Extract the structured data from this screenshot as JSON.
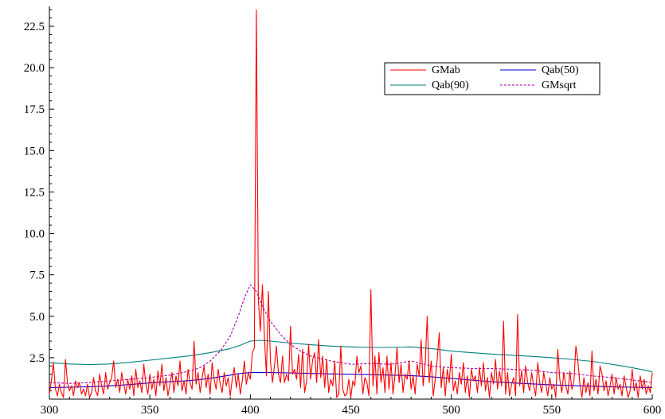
{
  "chart_data": {
    "type": "line",
    "title": "",
    "xlabel": "",
    "ylabel": "",
    "xlim": [
      300,
      600
    ],
    "ylim": [
      0,
      23.7
    ],
    "x_ticks": [
      300,
      350,
      400,
      450,
      500,
      550,
      600
    ],
    "x_tick_labels": [
      "300",
      "350",
      "400",
      "450",
      "500",
      "550",
      "600"
    ],
    "y_ticks": [
      2.5,
      5.0,
      7.5,
      10.0,
      12.5,
      15.0,
      17.5,
      20.0,
      22.5
    ],
    "y_tick_labels": [
      "2.5",
      "5.0",
      "7.5",
      "10.0",
      "12.5",
      "15.0",
      "17.5",
      "20.0",
      "22.5"
    ],
    "grid": false,
    "legend_position": "top-right",
    "legend_columns": 2,
    "series": [
      {
        "name": "GMab",
        "color": "#ff0000",
        "dash": "solid",
        "x": [
          300,
          301,
          302,
          303,
          304,
          305,
          306,
          307,
          308,
          309,
          310,
          311,
          312,
          313,
          314,
          315,
          316,
          317,
          318,
          319,
          320,
          321,
          322,
          323,
          324,
          325,
          326,
          327,
          328,
          329,
          330,
          331,
          332,
          333,
          334,
          335,
          336,
          337,
          338,
          339,
          340,
          341,
          342,
          343,
          344,
          345,
          346,
          347,
          348,
          349,
          350,
          351,
          352,
          353,
          354,
          355,
          356,
          357,
          358,
          359,
          360,
          361,
          362,
          363,
          364,
          365,
          366,
          367,
          368,
          369,
          370,
          371,
          372,
          373,
          374,
          375,
          376,
          377,
          378,
          379,
          380,
          381,
          382,
          383,
          384,
          385,
          386,
          387,
          388,
          389,
          390,
          391,
          392,
          393,
          394,
          395,
          396,
          397,
          398,
          399,
          400,
          401,
          402,
          403,
          404,
          405,
          406,
          407,
          408,
          409,
          410,
          411,
          412,
          413,
          414,
          415,
          416,
          417,
          418,
          419,
          420,
          421,
          422,
          423,
          424,
          425,
          426,
          427,
          428,
          429,
          430,
          431,
          432,
          433,
          434,
          435,
          436,
          437,
          438,
          439,
          440,
          441,
          442,
          443,
          444,
          445,
          446,
          447,
          448,
          449,
          450,
          451,
          452,
          453,
          454,
          455,
          456,
          457,
          458,
          459,
          460,
          461,
          462,
          463,
          464,
          465,
          466,
          467,
          468,
          469,
          470,
          471,
          472,
          473,
          474,
          475,
          476,
          477,
          478,
          479,
          480,
          481,
          482,
          483,
          484,
          485,
          486,
          487,
          488,
          489,
          490,
          491,
          492,
          493,
          494,
          495,
          496,
          497,
          498,
          499,
          500,
          501,
          502,
          503,
          504,
          505,
          506,
          507,
          508,
          509,
          510,
          511,
          512,
          513,
          514,
          515,
          516,
          517,
          518,
          519,
          520,
          521,
          522,
          523,
          524,
          525,
          526,
          527,
          528,
          529,
          530,
          531,
          532,
          533,
          534,
          535,
          536,
          537,
          538,
          539,
          540,
          541,
          542,
          543,
          544,
          545,
          546,
          547,
          548,
          549,
          550,
          551,
          552,
          553,
          554,
          555,
          556,
          557,
          558,
          559,
          560,
          561,
          562,
          563,
          564,
          565,
          566,
          567,
          568,
          569,
          570,
          571,
          572,
          573,
          574,
          575,
          576,
          577,
          578,
          579,
          580,
          581,
          582,
          583,
          584,
          585,
          586,
          587,
          588,
          589,
          590,
          591,
          592,
          593,
          594,
          595,
          596,
          597,
          598,
          599,
          600
        ],
        "y": [
          0.3,
          1.1,
          2.2,
          0.6,
          0.2,
          0.9,
          0.4,
          0.1,
          2.4,
          1.0,
          0.5,
          0.8,
          0.2,
          1.1,
          0.7,
          1.0,
          0.3,
          0.6,
          0.2,
          0.9,
          0.1,
          0.4,
          1.3,
          0.5,
          0.2,
          1.5,
          0.8,
          0.3,
          1.6,
          0.6,
          1.0,
          1.3,
          2.3,
          0.7,
          1.2,
          0.4,
          1.6,
          0.9,
          0.3,
          1.2,
          0.6,
          1.4,
          0.2,
          1.8,
          0.7,
          1.1,
          0.4,
          2.1,
          0.9,
          0.3,
          1.5,
          0.6,
          1.2,
          0.2,
          1.7,
          0.8,
          2.1,
          0.5,
          1.3,
          0.2,
          0.9,
          1.6,
          0.4,
          1.4,
          0.8,
          2.3,
          0.5,
          1.1,
          0.3,
          1.8,
          1.0,
          0.6,
          3.5,
          0.9,
          1.6,
          0.4,
          1.3,
          2.0,
          0.7,
          1.5,
          0.3,
          2.2,
          1.2,
          0.6,
          1.8,
          0.9,
          0.4,
          1.6,
          0.8,
          1.3,
          0.2,
          1.2,
          1.9,
          0.7,
          1.5,
          0.3,
          1.1,
          2.3,
          0.9,
          1.6,
          1.2,
          2.8,
          3.1,
          23.5,
          6.0,
          4.1,
          6.9,
          3.8,
          1.4,
          6.5,
          2.3,
          1.0,
          2.0,
          3.2,
          1.5,
          1.0,
          2.6,
          1.0,
          1.5,
          1.1,
          4.4,
          1.5,
          1.8,
          1.2,
          2.7,
          0.7,
          3.0,
          0.4,
          1.1,
          3.3,
          1.2,
          2.4,
          2.8,
          1.0,
          3.6,
          1.3,
          2.6,
          0.7,
          2.4,
          0.4,
          1.2,
          0.8,
          2.3,
          0.1,
          0.3,
          3.2,
          0.6,
          0.2,
          0.3,
          1.2,
          0.1,
          1.1,
          0.8,
          2.6,
          1.6,
          2.0,
          0.3,
          1.3,
          1.0,
          0.2,
          6.6,
          0.8,
          2.6,
          0.3,
          2.8,
          1.0,
          1.9,
          0.4,
          2.6,
          0.6,
          2.2,
          0.3,
          1.5,
          3.1,
          1.0,
          2.1,
          0.4,
          1.5,
          1.2,
          2.3,
          0.6,
          1.4,
          0.3,
          2.1,
          1.4,
          3.6,
          0.8,
          2.1,
          5.0,
          1.0,
          2.3,
          0.2,
          1.2,
          2.4,
          4.0,
          0.7,
          1.9,
          0.2,
          1.8,
          1.0,
          2.7,
          0.5,
          1.1,
          0.3,
          1.6,
          0.9,
          2.2,
          0.4,
          1.4,
          0.1,
          1.8,
          1.1,
          1.4,
          0.4,
          1.9,
          0.8,
          2.2,
          0.5,
          1.3,
          0.1,
          1.6,
          0.9,
          2.4,
          0.6,
          1.7,
          0.8,
          4.7,
          0.3,
          1.6,
          0.2,
          0.9,
          1.3,
          0.2,
          5.1,
          0.8,
          1.7,
          0.4,
          2.0,
          1.0,
          0.5,
          1.6,
          0.8,
          0.2,
          2.2,
          1.0,
          0.4,
          1.6,
          0.9,
          0.2,
          1.3,
          0.6,
          0.9,
          0.1,
          3.0,
          1.2,
          0.4,
          1.6,
          0.8,
          0.3,
          1.7,
          0.6,
          1.1,
          3.2,
          2.3,
          0.9,
          0.1,
          1.3,
          0.4,
          1.0,
          0.2,
          2.9,
          0.5,
          1.2,
          0.3,
          2.0,
          1.5,
          0.5,
          1.1,
          0.2,
          0.8,
          1.5,
          0.3,
          1.3,
          0.6,
          0.9,
          0.2,
          1.4,
          0.7,
          0.1,
          0.5,
          1.8,
          0.5,
          1.0,
          0.1,
          1.4,
          0.6,
          1.2,
          0.3,
          0.8,
          0.4,
          1.6
        ]
      },
      {
        "name": "Qab(50)",
        "color": "#0000dd",
        "dash": "solid",
        "x": [
          300,
          310,
          320,
          330,
          340,
          350,
          360,
          370,
          380,
          390,
          395,
          400,
          410,
          420,
          430,
          440,
          450,
          460,
          470,
          480,
          490,
          500,
          510,
          520,
          530,
          540,
          550,
          560,
          570,
          580,
          590,
          600
        ],
        "y": [
          0.7,
          0.72,
          0.75,
          0.8,
          0.88,
          0.98,
          1.05,
          1.12,
          1.25,
          1.45,
          1.55,
          1.6,
          1.6,
          1.58,
          1.55,
          1.52,
          1.5,
          1.48,
          1.45,
          1.42,
          1.35,
          1.25,
          1.15,
          1.05,
          0.98,
          0.92,
          0.86,
          0.82,
          0.78,
          0.74,
          0.72,
          0.7
        ]
      },
      {
        "name": "Qab(90)",
        "color": "#008080",
        "dash": "solid",
        "x": [
          300,
          310,
          320,
          330,
          340,
          350,
          360,
          370,
          380,
          390,
          395,
          400,
          405,
          410,
          420,
          430,
          440,
          450,
          460,
          470,
          480,
          490,
          500,
          510,
          520,
          530,
          540,
          550,
          560,
          570,
          580,
          590,
          600
        ],
        "y": [
          2.2,
          2.12,
          2.08,
          2.12,
          2.22,
          2.35,
          2.48,
          2.62,
          2.8,
          3.05,
          3.25,
          3.5,
          3.55,
          3.5,
          3.38,
          3.28,
          3.2,
          3.15,
          3.12,
          3.12,
          3.15,
          3.05,
          2.9,
          2.8,
          2.72,
          2.65,
          2.58,
          2.5,
          2.4,
          2.28,
          2.1,
          1.9,
          1.65
        ]
      },
      {
        "name": "GMsqrt",
        "color": "#aa00aa",
        "dash": "dashed",
        "x": [
          300,
          310,
          320,
          330,
          340,
          350,
          360,
          370,
          375,
          380,
          385,
          390,
          394,
          397,
          400,
          403,
          406,
          410,
          415,
          420,
          425,
          430,
          440,
          450,
          460,
          470,
          480,
          490,
          500,
          510,
          520,
          530,
          540,
          550,
          560,
          570,
          580,
          590,
          600
        ],
        "y": [
          1.0,
          0.95,
          1.0,
          1.1,
          1.2,
          1.3,
          1.45,
          1.7,
          1.9,
          2.3,
          2.9,
          3.8,
          5.0,
          6.1,
          6.9,
          6.5,
          5.6,
          4.7,
          3.9,
          3.3,
          2.9,
          2.6,
          2.3,
          2.1,
          2.15,
          2.1,
          2.3,
          2.0,
          1.9,
          1.85,
          1.85,
          1.8,
          1.75,
          1.6,
          1.55,
          1.4,
          1.3,
          1.15,
          1.0
        ]
      }
    ]
  }
}
